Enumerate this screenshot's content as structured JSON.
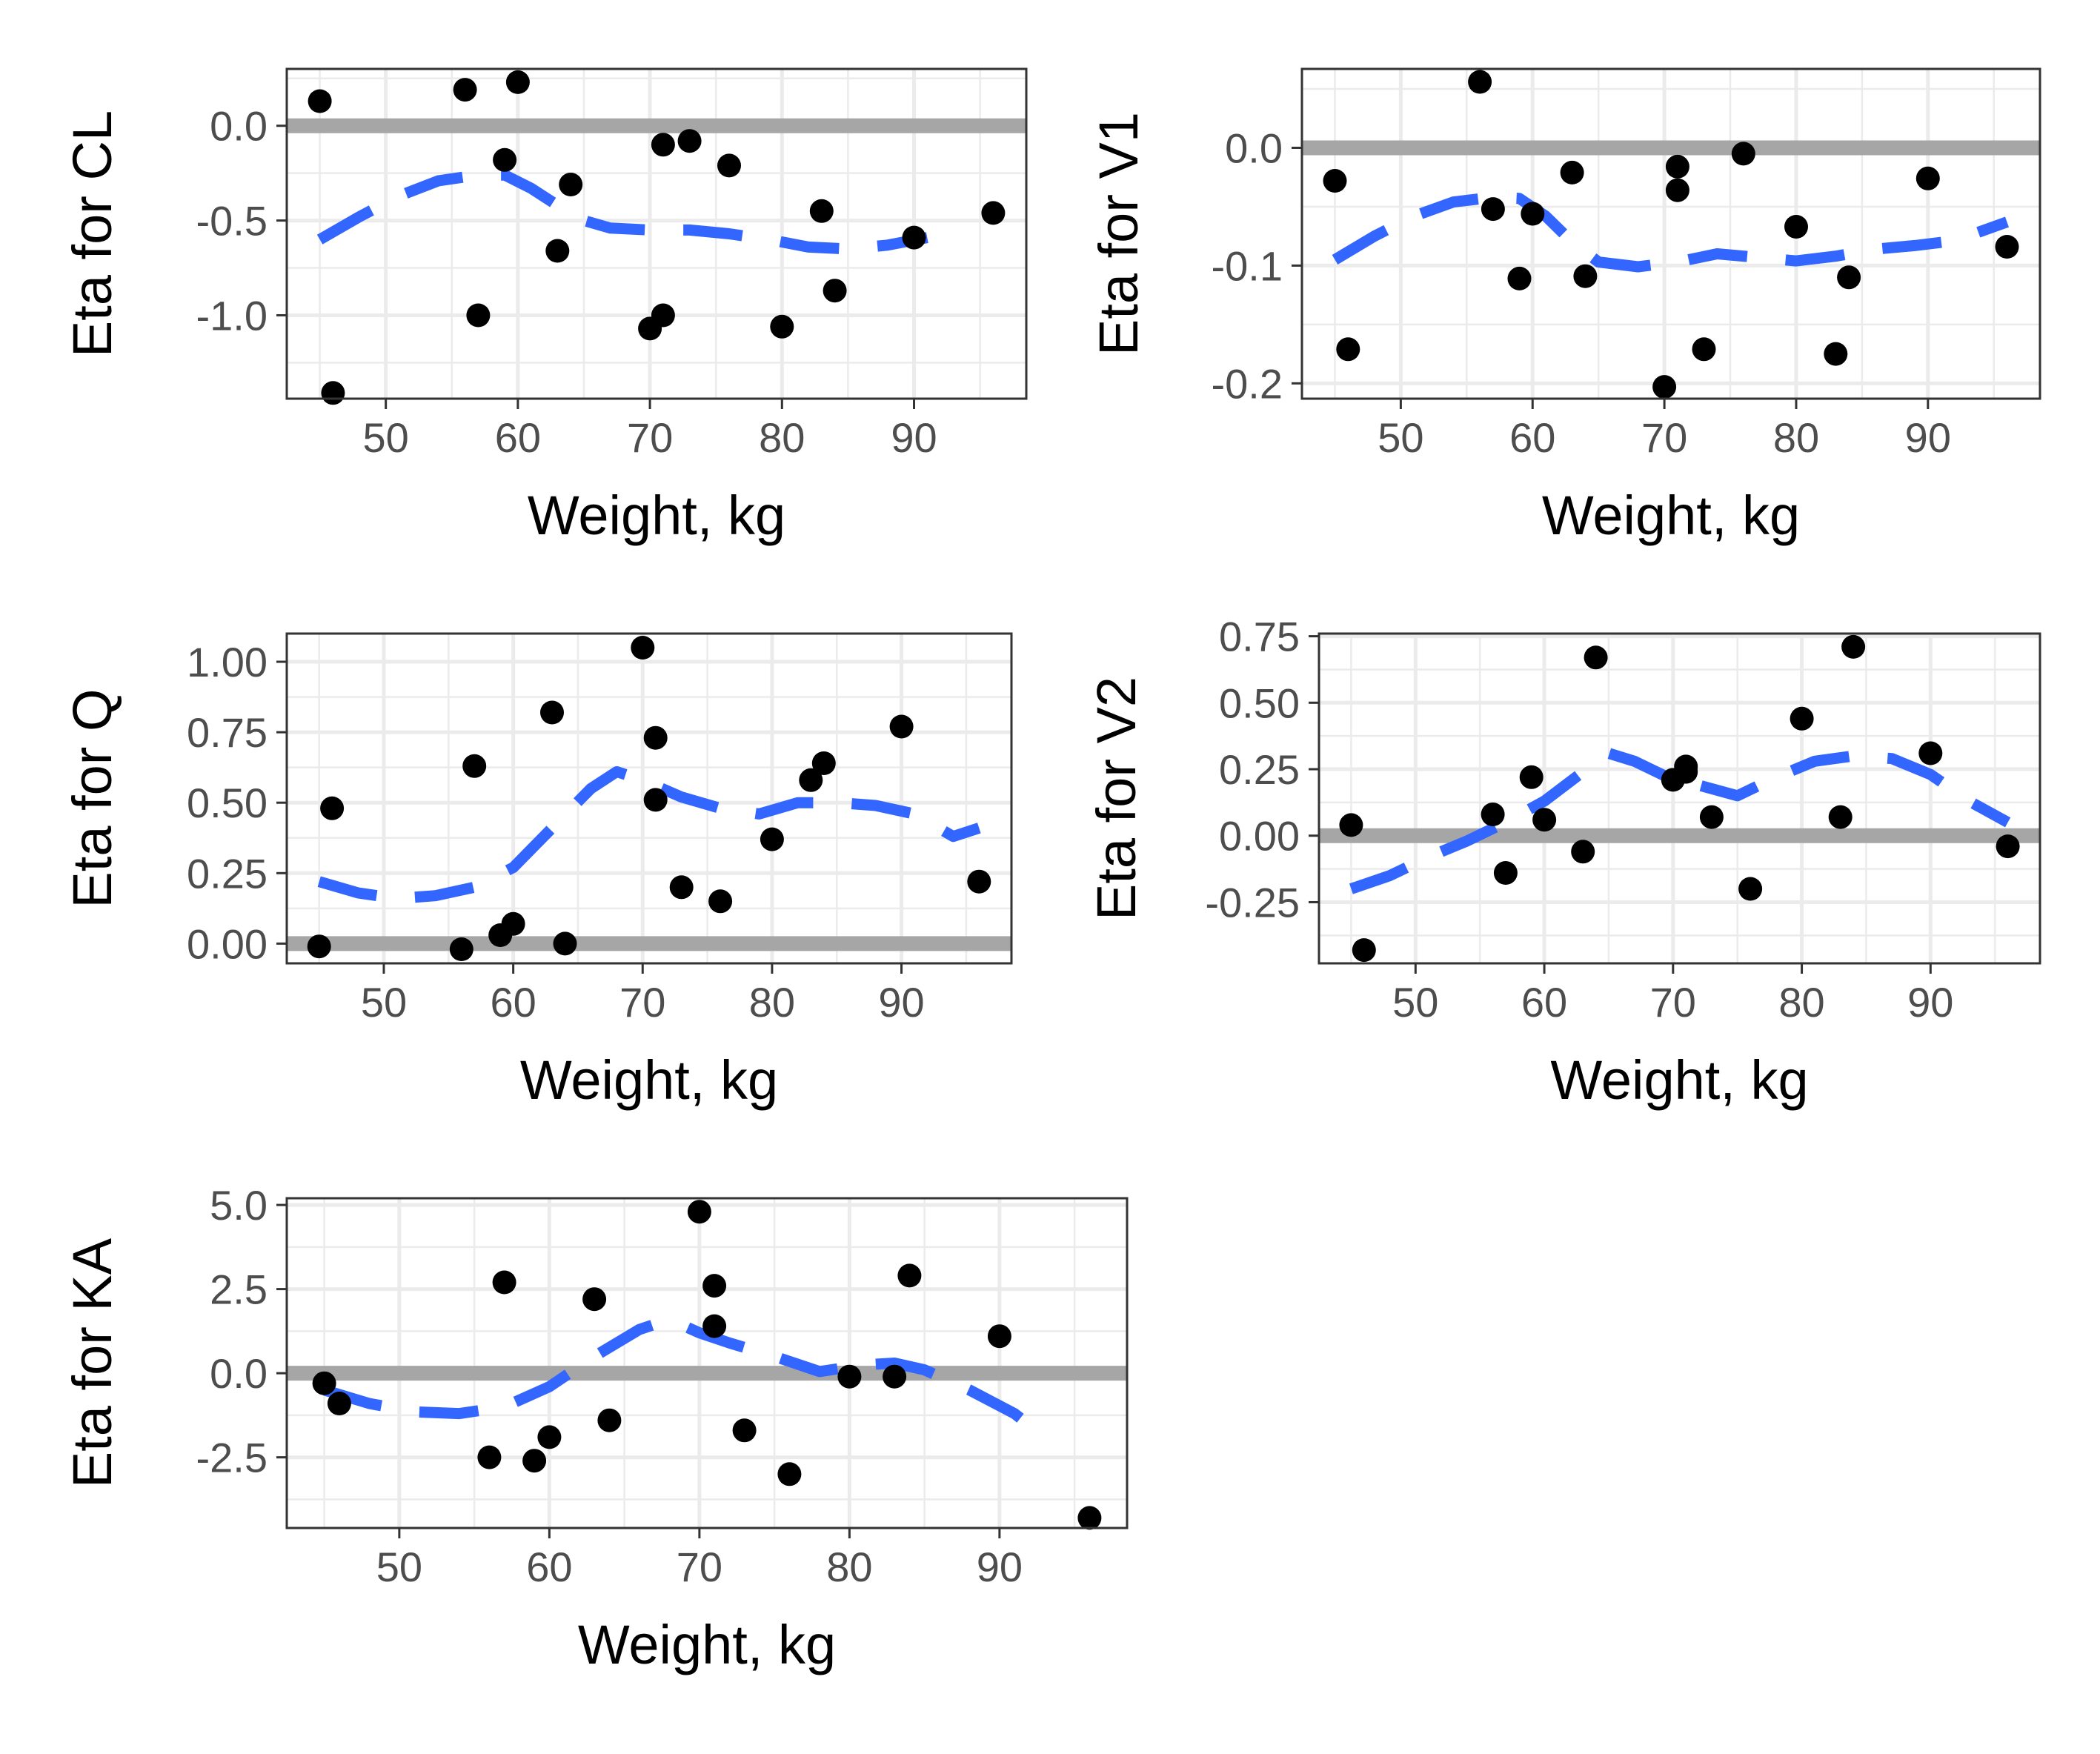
{
  "colors": {
    "points": "#000000",
    "smooth": "#3366ff",
    "reference_line": "#a6a6a6",
    "grid": "#ebebeb",
    "panel_border": "#333333",
    "tick_label": "#4d4d4d"
  },
  "chart_data": [
    {
      "type": "scatter",
      "title": "",
      "xlabel": "Weight, kg",
      "ylabel": "Eta for CL",
      "xlim": [
        42.5,
        98.5
      ],
      "ylim": [
        -1.44,
        0.3
      ],
      "xticks": [
        50,
        60,
        70,
        80,
        90
      ],
      "yticks": [
        0.0,
        -0.5,
        -1.0
      ],
      "ytick_labels": [
        "0.0",
        "-0.5",
        "-1.0"
      ],
      "reference_y": 0,
      "grid": true,
      "legend": "none",
      "points": [
        {
          "x": 45,
          "y": 0.13
        },
        {
          "x": 46,
          "y": -1.41
        },
        {
          "x": 56,
          "y": 0.19
        },
        {
          "x": 57,
          "y": -1.0
        },
        {
          "x": 59,
          "y": -0.18
        },
        {
          "x": 60,
          "y": 0.23
        },
        {
          "x": 63,
          "y": -0.66
        },
        {
          "x": 64,
          "y": -0.31
        },
        {
          "x": 70,
          "y": -1.07
        },
        {
          "x": 71,
          "y": -1.0
        },
        {
          "x": 71,
          "y": -0.1
        },
        {
          "x": 73,
          "y": -0.08
        },
        {
          "x": 76,
          "y": -0.21
        },
        {
          "x": 80,
          "y": -1.06
        },
        {
          "x": 83,
          "y": -0.45
        },
        {
          "x": 84,
          "y": -0.87
        },
        {
          "x": 90,
          "y": -0.59
        },
        {
          "x": 96,
          "y": -0.46
        }
      ],
      "smooth": [
        {
          "x": 45,
          "y": -0.6
        },
        {
          "x": 48,
          "y": -0.48
        },
        {
          "x": 51,
          "y": -0.37
        },
        {
          "x": 54,
          "y": -0.29
        },
        {
          "x": 57,
          "y": -0.26
        },
        {
          "x": 59,
          "y": -0.26
        },
        {
          "x": 61,
          "y": -0.33
        },
        {
          "x": 63,
          "y": -0.42
        },
        {
          "x": 65,
          "y": -0.5
        },
        {
          "x": 67,
          "y": -0.54
        },
        {
          "x": 70,
          "y": -0.55
        },
        {
          "x": 73,
          "y": -0.55
        },
        {
          "x": 76,
          "y": -0.57
        },
        {
          "x": 79,
          "y": -0.6
        },
        {
          "x": 82,
          "y": -0.64
        },
        {
          "x": 85,
          "y": -0.65
        },
        {
          "x": 88,
          "y": -0.63
        },
        {
          "x": 91,
          "y": -0.59
        }
      ]
    },
    {
      "type": "scatter",
      "title": "",
      "xlabel": "Weight, kg",
      "ylabel": "Eta for V1",
      "xlim": [
        42.5,
        98.5
      ],
      "ylim": [
        -0.213,
        0.067
      ],
      "xticks": [
        50,
        60,
        70,
        80,
        90
      ],
      "yticks": [
        0.0,
        -0.1,
        -0.2
      ],
      "ytick_labels": [
        "0.0",
        "-0.1",
        "-0.2"
      ],
      "reference_y": 0,
      "grid": true,
      "legend": "none",
      "points": [
        {
          "x": 45,
          "y": -0.028
        },
        {
          "x": 46,
          "y": -0.171
        },
        {
          "x": 56,
          "y": 0.056
        },
        {
          "x": 57,
          "y": -0.052
        },
        {
          "x": 59,
          "y": -0.111
        },
        {
          "x": 60,
          "y": -0.056
        },
        {
          "x": 63,
          "y": -0.021
        },
        {
          "x": 64,
          "y": -0.109
        },
        {
          "x": 70,
          "y": -0.203
        },
        {
          "x": 71,
          "y": -0.016
        },
        {
          "x": 71,
          "y": -0.036
        },
        {
          "x": 73,
          "y": -0.171
        },
        {
          "x": 76,
          "y": -0.005
        },
        {
          "x": 80,
          "y": -0.067
        },
        {
          "x": 83,
          "y": -0.175
        },
        {
          "x": 84,
          "y": -0.11
        },
        {
          "x": 90,
          "y": -0.026
        },
        {
          "x": 96,
          "y": -0.084
        }
      ],
      "smooth": [
        {
          "x": 45,
          "y": -0.095
        },
        {
          "x": 48,
          "y": -0.075
        },
        {
          "x": 51,
          "y": -0.058
        },
        {
          "x": 54,
          "y": -0.046
        },
        {
          "x": 57,
          "y": -0.042
        },
        {
          "x": 59,
          "y": -0.043
        },
        {
          "x": 61,
          "y": -0.058
        },
        {
          "x": 63,
          "y": -0.08
        },
        {
          "x": 65,
          "y": -0.097
        },
        {
          "x": 68,
          "y": -0.101
        },
        {
          "x": 71,
          "y": -0.097
        },
        {
          "x": 74,
          "y": -0.09
        },
        {
          "x": 77,
          "y": -0.093
        },
        {
          "x": 80,
          "y": -0.096
        },
        {
          "x": 83,
          "y": -0.092
        },
        {
          "x": 86,
          "y": -0.086
        },
        {
          "x": 89,
          "y": -0.083
        },
        {
          "x": 92,
          "y": -0.079
        },
        {
          "x": 96,
          "y": -0.063
        }
      ]
    },
    {
      "type": "scatter",
      "title": "",
      "xlabel": "Weight, kg",
      "ylabel": "Eta for Q",
      "xlim": [
        42.5,
        98.5
      ],
      "ylim": [
        -0.07,
        1.1
      ],
      "xticks": [
        50,
        60,
        70,
        80,
        90
      ],
      "yticks": [
        1.0,
        0.75,
        0.5,
        0.25,
        0.0
      ],
      "ytick_labels": [
        "1.00",
        "0.75",
        "0.50",
        "0.25",
        "0.00"
      ],
      "reference_y": 0,
      "grid": true,
      "legend": "none",
      "points": [
        {
          "x": 45,
          "y": -0.01
        },
        {
          "x": 46,
          "y": 0.48
        },
        {
          "x": 56,
          "y": -0.02
        },
        {
          "x": 57,
          "y": 0.63
        },
        {
          "x": 59,
          "y": 0.03
        },
        {
          "x": 60,
          "y": 0.07
        },
        {
          "x": 63,
          "y": 0.82
        },
        {
          "x": 64,
          "y": 0.0
        },
        {
          "x": 70,
          "y": 1.05
        },
        {
          "x": 71,
          "y": 0.73
        },
        {
          "x": 71,
          "y": 0.51
        },
        {
          "x": 73,
          "y": 0.2
        },
        {
          "x": 76,
          "y": 0.15
        },
        {
          "x": 80,
          "y": 0.37
        },
        {
          "x": 83,
          "y": 0.58
        },
        {
          "x": 84,
          "y": 0.64
        },
        {
          "x": 90,
          "y": 0.77
        },
        {
          "x": 96,
          "y": 0.22
        }
      ],
      "smooth": [
        {
          "x": 45,
          "y": 0.22
        },
        {
          "x": 48,
          "y": 0.18
        },
        {
          "x": 51,
          "y": 0.16
        },
        {
          "x": 54,
          "y": 0.17
        },
        {
          "x": 57,
          "y": 0.2
        },
        {
          "x": 60,
          "y": 0.27
        },
        {
          "x": 63,
          "y": 0.41
        },
        {
          "x": 66,
          "y": 0.55
        },
        {
          "x": 68,
          "y": 0.61
        },
        {
          "x": 70,
          "y": 0.58
        },
        {
          "x": 73,
          "y": 0.52
        },
        {
          "x": 76,
          "y": 0.48
        },
        {
          "x": 79,
          "y": 0.46
        },
        {
          "x": 82,
          "y": 0.5
        },
        {
          "x": 85,
          "y": 0.5
        },
        {
          "x": 88,
          "y": 0.49
        },
        {
          "x": 91,
          "y": 0.46
        },
        {
          "x": 94,
          "y": 0.38
        },
        {
          "x": 96,
          "y": 0.41
        }
      ]
    },
    {
      "type": "scatter",
      "title": "",
      "xlabel": "Weight, kg",
      "ylabel": "Eta for V2",
      "xlim": [
        42.5,
        98.5
      ],
      "ylim": [
        -0.48,
        0.76
      ],
      "xticks": [
        50,
        60,
        70,
        80,
        90
      ],
      "yticks": [
        0.75,
        0.5,
        0.25,
        0.0,
        -0.25
      ],
      "ytick_labels": [
        "0.75",
        "0.50",
        "0.25",
        "0.00",
        "-0.25"
      ],
      "reference_y": 0,
      "grid": true,
      "legend": "none",
      "points": [
        {
          "x": 45,
          "y": 0.04
        },
        {
          "x": 46,
          "y": -0.43
        },
        {
          "x": 56,
          "y": 0.08
        },
        {
          "x": 57,
          "y": -0.14
        },
        {
          "x": 59,
          "y": 0.22
        },
        {
          "x": 60,
          "y": 0.06
        },
        {
          "x": 63,
          "y": -0.06
        },
        {
          "x": 64,
          "y": 0.67
        },
        {
          "x": 70,
          "y": 0.21
        },
        {
          "x": 71,
          "y": 0.24
        },
        {
          "x": 71,
          "y": 0.26
        },
        {
          "x": 73,
          "y": 0.07
        },
        {
          "x": 76,
          "y": -0.2
        },
        {
          "x": 80,
          "y": 0.44
        },
        {
          "x": 83,
          "y": 0.07
        },
        {
          "x": 84,
          "y": 0.71
        },
        {
          "x": 90,
          "y": 0.31
        },
        {
          "x": 96,
          "y": -0.04
        }
      ],
      "smooth": [
        {
          "x": 45,
          "y": -0.2
        },
        {
          "x": 48,
          "y": -0.15
        },
        {
          "x": 51,
          "y": -0.08
        },
        {
          "x": 54,
          "y": -0.02
        },
        {
          "x": 57,
          "y": 0.05
        },
        {
          "x": 60,
          "y": 0.13
        },
        {
          "x": 63,
          "y": 0.24
        },
        {
          "x": 65,
          "y": 0.31
        },
        {
          "x": 67,
          "y": 0.28
        },
        {
          "x": 70,
          "y": 0.21
        },
        {
          "x": 72,
          "y": 0.19
        },
        {
          "x": 75,
          "y": 0.15
        },
        {
          "x": 78,
          "y": 0.22
        },
        {
          "x": 81,
          "y": 0.28
        },
        {
          "x": 84,
          "y": 0.3
        },
        {
          "x": 87,
          "y": 0.29
        },
        {
          "x": 90,
          "y": 0.23
        },
        {
          "x": 93,
          "y": 0.13
        },
        {
          "x": 96,
          "y": 0.05
        }
      ]
    },
    {
      "type": "scatter",
      "title": "",
      "xlabel": "Weight, kg",
      "ylabel": "Eta for KA",
      "xlim": [
        42.5,
        98.5
      ],
      "ylim": [
        -4.6,
        5.2
      ],
      "xticks": [
        50,
        60,
        70,
        80,
        90
      ],
      "yticks": [
        5.0,
        2.5,
        0.0,
        -2.5
      ],
      "ytick_labels": [
        "5.0",
        "2.5",
        "0.0",
        "-2.5"
      ],
      "reference_y": 0,
      "grid": true,
      "legend": "none",
      "points": [
        {
          "x": 45,
          "y": -0.3
        },
        {
          "x": 46,
          "y": -0.9
        },
        {
          "x": 56,
          "y": -2.5
        },
        {
          "x": 57,
          "y": 2.7
        },
        {
          "x": 59,
          "y": -2.6
        },
        {
          "x": 60,
          "y": -1.9
        },
        {
          "x": 63,
          "y": 2.2
        },
        {
          "x": 64,
          "y": -1.4
        },
        {
          "x": 70,
          "y": 4.8
        },
        {
          "x": 71,
          "y": 2.6
        },
        {
          "x": 71,
          "y": 1.4
        },
        {
          "x": 73,
          "y": -1.7
        },
        {
          "x": 76,
          "y": -3.0
        },
        {
          "x": 80,
          "y": -0.1
        },
        {
          "x": 83,
          "y": -0.1
        },
        {
          "x": 84,
          "y": 2.9
        },
        {
          "x": 90,
          "y": 1.1
        },
        {
          "x": 96,
          "y": -4.3
        }
      ],
      "smooth": [
        {
          "x": 45,
          "y": -0.5
        },
        {
          "x": 48,
          "y": -0.9
        },
        {
          "x": 51,
          "y": -1.15
        },
        {
          "x": 54,
          "y": -1.2
        },
        {
          "x": 57,
          "y": -1.0
        },
        {
          "x": 60,
          "y": -0.4
        },
        {
          "x": 63,
          "y": 0.5
        },
        {
          "x": 66,
          "y": 1.3
        },
        {
          "x": 68,
          "y": 1.6
        },
        {
          "x": 70,
          "y": 1.2
        },
        {
          "x": 72,
          "y": 0.9
        },
        {
          "x": 75,
          "y": 0.5
        },
        {
          "x": 78,
          "y": 0.05
        },
        {
          "x": 81,
          "y": 0.25
        },
        {
          "x": 83,
          "y": 0.3
        },
        {
          "x": 85,
          "y": 0.1
        },
        {
          "x": 88,
          "y": -0.5
        },
        {
          "x": 91,
          "y": -1.2
        },
        {
          "x": 93,
          "y": -1.9
        }
      ]
    }
  ]
}
